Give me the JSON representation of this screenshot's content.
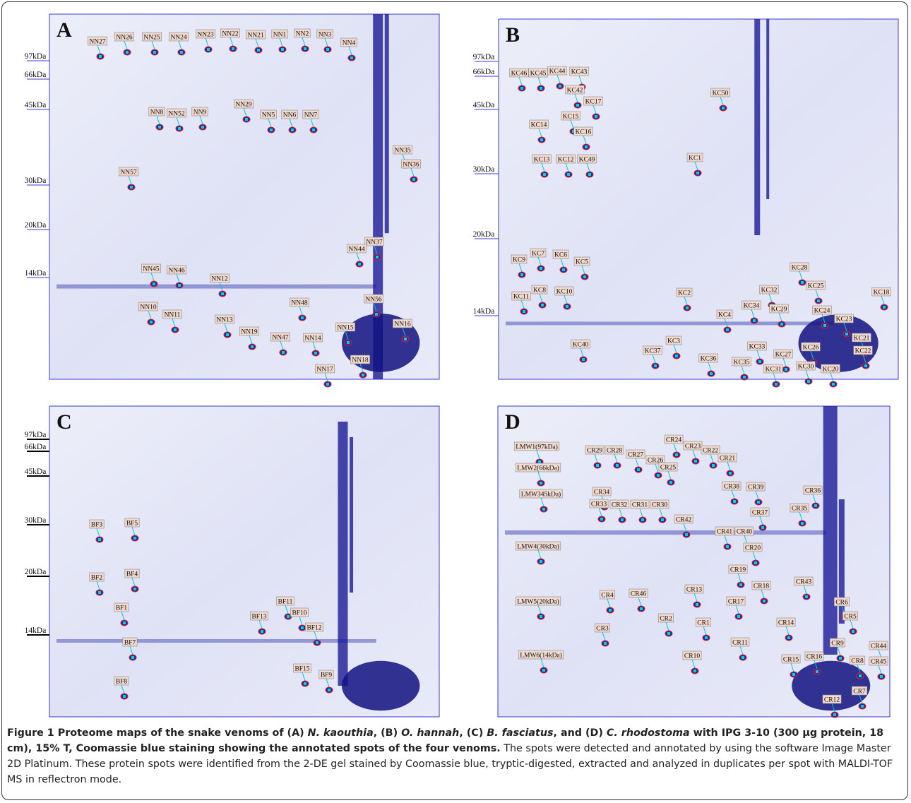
{
  "panels": [
    {
      "letter": "A",
      "markers": [
        "97kDa",
        "66kDa",
        "45kDa",
        "30kDa",
        "20kDa",
        "14kDa"
      ],
      "spots": [
        "NN27",
        "NN26",
        "NN25",
        "NN24",
        "NN23",
        "NN22",
        "NN21",
        "NN1",
        "NN2",
        "NN3",
        "NN4",
        "NN29",
        "NN8",
        "NN52",
        "NN9",
        "NN5",
        "NN6",
        "NN7",
        "NN35",
        "NN36",
        "NN57",
        "NN37",
        "NN44",
        "NN45",
        "NN46",
        "NN12",
        "NN10",
        "NN11",
        "NN13",
        "NN48",
        "NN56",
        "NN16",
        "NN15",
        "NN47",
        "NN14",
        "NN19",
        "NN17",
        "NN18"
      ]
    },
    {
      "letter": "B",
      "markers": [
        "97kDa",
        "66kDa",
        "45kDa",
        "30kDa",
        "20kDa",
        "14kDa"
      ],
      "spots": [
        "KC46",
        "KC45",
        "KC44",
        "KC43",
        "KC42",
        "KC17",
        "KC15",
        "KC14",
        "KC16",
        "KC13",
        "KC12",
        "KC49",
        "KC50",
        "KC1",
        "KC9",
        "KC7",
        "KC6",
        "KC5",
        "KC11",
        "KC8",
        "KC10",
        "KC2",
        "KC28",
        "KC25",
        "KC32",
        "KC34",
        "KC29",
        "KC24",
        "KC23",
        "KC4",
        "KC18",
        "KC21",
        "KC22",
        "KC33",
        "KC26",
        "KC27",
        "KC40",
        "KC37",
        "KC3",
        "KC36",
        "KC35",
        "KC31",
        "KC30",
        "KC20"
      ]
    },
    {
      "letter": "C",
      "markers": [
        "97kDa",
        "66kDa",
        "45kDa",
        "30kDa",
        "20kDa",
        "14kDa"
      ],
      "spots": [
        "BF3",
        "BF5",
        "BF2",
        "BF4",
        "BF1",
        "BF7",
        "BF8",
        "BF11",
        "BF13",
        "BF10",
        "BF12",
        "BF15",
        "BF9"
      ]
    },
    {
      "letter": "D",
      "markers": [],
      "spots": [
        "LMW1(97kDa)",
        "LMW2(66kDa)",
        "LMW345kDa)",
        "LMW4(30kDa)",
        "LMW5(20kDa)",
        "LMW6(14kDa)",
        "CR29",
        "CR28",
        "CR27",
        "CR26",
        "CR25",
        "CR24",
        "CR23",
        "CR22",
        "CR21",
        "CR34",
        "CR33",
        "CR32",
        "CR31",
        "CR30",
        "CR38",
        "CR39",
        "CR37",
        "CR36",
        "CR35",
        "CR42",
        "CR41",
        "CR40",
        "CR20",
        "CR19",
        "CR18",
        "CR43",
        "CR13",
        "CR17",
        "CR4",
        "CR46",
        "CR6",
        "CR5",
        "CR2",
        "CR1",
        "CR3",
        "CR11",
        "CR14",
        "CR9",
        "CR44",
        "CR10",
        "CR15",
        "CR16",
        "CR8",
        "CR45",
        "CR7",
        "CR12"
      ]
    }
  ],
  "caption": {
    "lead": [
      "Figure 1 Proteome maps of the snake venoms of (A) ",
      "N. kaouthia",
      ", (B) ",
      "O. hannah",
      ", (C) ",
      "B. fasciatus",
      ", and (D) ",
      "C. rhodostoma",
      " with IPG 3-10 (300 µg protein, 18 cm), 15% T, Coomassie blue staining showing the annotated spots of the four venoms."
    ],
    "body": "The spots were detected and annotated by using the software Image Master 2D Platinum. These protein spots were identified from the 2-DE gel stained by Coomassie blue, tryptic-digested, extracted and analyzed in duplicates per spot with MALDI-TOF MS in reflectron mode."
  }
}
